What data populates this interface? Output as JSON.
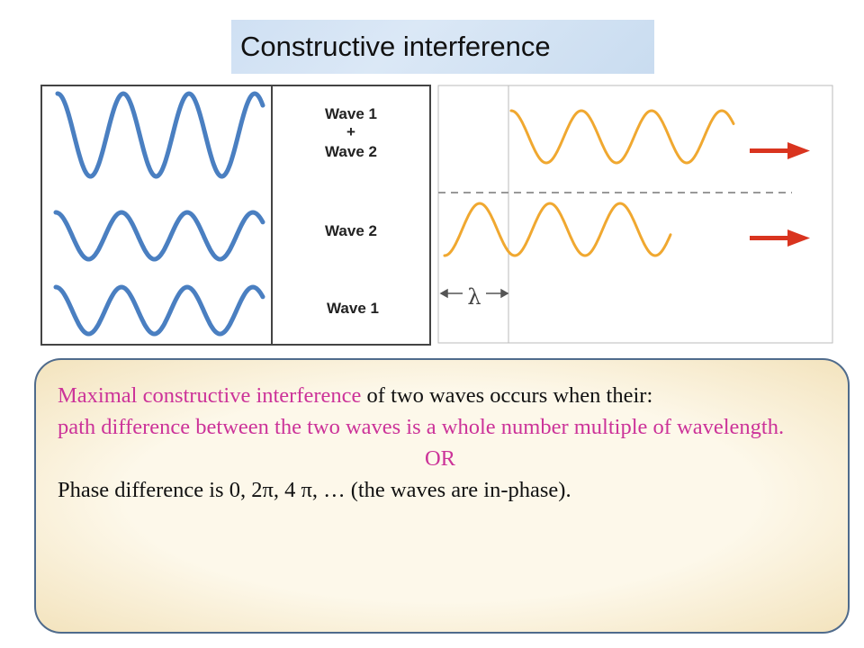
{
  "title": "Constructive interference",
  "figure_left": {
    "labels": [
      "Wave 1",
      "+",
      "Wave 2",
      "Wave 2",
      "Wave 1"
    ]
  },
  "figure_right": {
    "label": "λ"
  },
  "body": {
    "p1": [
      "Maximal constructive interference",
      "of two waves occurs when their:"
    ],
    "p2": "path difference between the two waves is a whole number multiple of wavelength.",
    "or": "OR",
    "p3": "Phase difference is 0, 2π, 4 π, … (the waves are in-phase)."
  }
}
